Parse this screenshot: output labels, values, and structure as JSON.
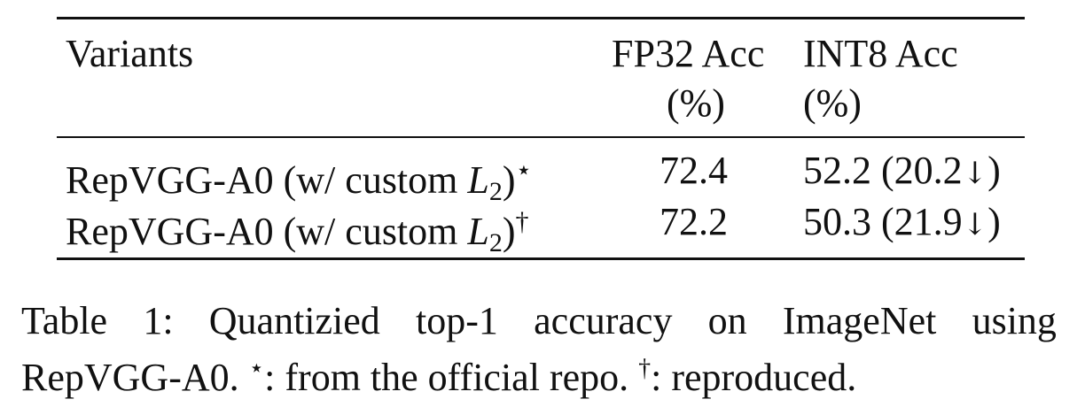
{
  "table": {
    "headers": {
      "variants": "Variants",
      "fp32": "FP32 Acc",
      "fp32_unit": "(%)",
      "int8": "INT8 Acc",
      "int8_unit": "(%)"
    },
    "rows": [
      {
        "variant_prefix": "RepVGG-A0 (w/ custom ",
        "math_var": "L",
        "math_sub": "2",
        "variant_close": ")",
        "marker": "⋆",
        "fp32": "72.4",
        "int8_value": "52.2 (20.2",
        "int8_arrow": "↓",
        "int8_close": ")"
      },
      {
        "variant_prefix": "RepVGG-A0 (w/ custom ",
        "math_var": "L",
        "math_sub": "2",
        "variant_close": ")",
        "marker": "†",
        "fp32": "72.2",
        "int8_value": "50.3 (21.9",
        "int8_arrow": "↓",
        "int8_close": ")"
      }
    ]
  },
  "caption": {
    "words": [
      "Table",
      "1:",
      "Quantizied",
      "top-1",
      "accuracy",
      "on",
      "ImageNet",
      "using"
    ],
    "line2_a": "RepVGG-A0. ",
    "mark_star": "⋆",
    "line2_b": ": from the official repo. ",
    "mark_dagger": "†",
    "line2_c": ": reproduced."
  }
}
